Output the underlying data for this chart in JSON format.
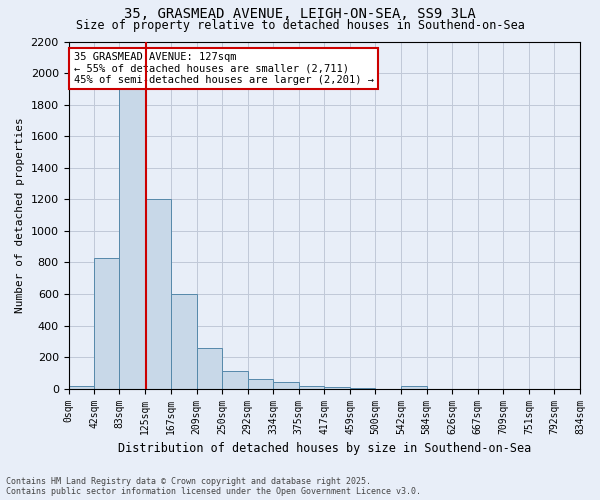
{
  "title_line1": "35, GRASMEAD AVENUE, LEIGH-ON-SEA, SS9 3LA",
  "title_line2": "Size of property relative to detached houses in Southend-on-Sea",
  "xlabel": "Distribution of detached houses by size in Southend-on-Sea",
  "ylabel": "Number of detached properties",
  "bin_labels": [
    "0sqm",
    "42sqm",
    "83sqm",
    "125sqm",
    "167sqm",
    "209sqm",
    "250sqm",
    "292sqm",
    "334sqm",
    "375sqm",
    "417sqm",
    "459sqm",
    "500sqm",
    "542sqm",
    "584sqm",
    "626sqm",
    "667sqm",
    "709sqm",
    "751sqm",
    "792sqm",
    "834sqm"
  ],
  "bin_edges": [
    0,
    42,
    83,
    125,
    167,
    209,
    250,
    292,
    334,
    375,
    417,
    459,
    500,
    542,
    584,
    626,
    667,
    709,
    751,
    792,
    834
  ],
  "bar_heights": [
    20,
    830,
    1900,
    1200,
    600,
    260,
    110,
    60,
    45,
    20,
    10,
    5,
    0,
    20,
    0,
    0,
    0,
    0,
    0,
    0
  ],
  "bar_color": "#c8d8e8",
  "bar_edge_color": "#5588aa",
  "vline_x": 127,
  "vline_color": "#cc0000",
  "annotation_title": "35 GRASMEAD AVENUE: 127sqm",
  "annotation_line2": "← 55% of detached houses are smaller (2,711)",
  "annotation_line3": "45% of semi-detached houses are larger (2,201) →",
  "annotation_box_color": "#cc0000",
  "annotation_bg": "#ffffff",
  "ylim": [
    0,
    2200
  ],
  "yticks": [
    0,
    200,
    400,
    600,
    800,
    1000,
    1200,
    1400,
    1600,
    1800,
    2000,
    2200
  ],
  "grid_color": "#c0c8d8",
  "background_color": "#e8eef8",
  "footer_line1": "Contains HM Land Registry data © Crown copyright and database right 2025.",
  "footer_line2": "Contains public sector information licensed under the Open Government Licence v3.0."
}
